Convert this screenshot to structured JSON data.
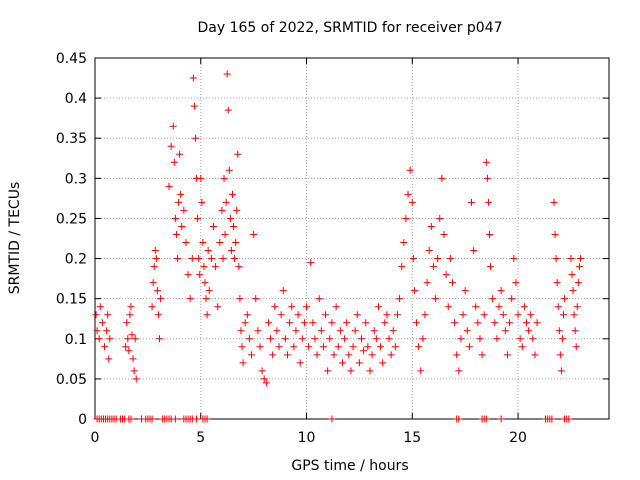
{
  "chart_data": {
    "type": "scatter",
    "title": "Day 165 of 2022, SRMTID for receiver p047",
    "xlabel": "GPS time / hours",
    "ylabel": "SRMTID / TECUs",
    "xlim": [
      0,
      24.3
    ],
    "ylim": [
      0,
      0.45
    ],
    "xticks": [
      0,
      5,
      10,
      15,
      20
    ],
    "yticks": [
      0,
      0.05,
      0.1,
      0.15,
      0.2,
      0.25,
      0.3,
      0.35,
      0.4,
      0.45
    ],
    "ytick_labels": [
      "0",
      "0.05",
      "0.1",
      "0.15",
      "0.2",
      "0.25",
      "0.3",
      "0.35",
      "0.4",
      "0.45"
    ],
    "grid": true,
    "marker": "+",
    "color": "#ff0000",
    "series": [
      {
        "name": "SRMTID",
        "points": [
          [
            0.05,
            0.13
          ],
          [
            0.1,
            0.11
          ],
          [
            0.2,
            0.1
          ],
          [
            0.25,
            0.14
          ],
          [
            0.35,
            0.12
          ],
          [
            0.45,
            0.09
          ],
          [
            0.55,
            0.11
          ],
          [
            0.6,
            0.13
          ],
          [
            0.65,
            0.075
          ],
          [
            0.7,
            0.1
          ],
          [
            1.45,
            0.09
          ],
          [
            1.5,
            0.12
          ],
          [
            1.55,
            0.1
          ],
          [
            1.6,
            0.085
          ],
          [
            1.65,
            0.13
          ],
          [
            1.7,
            0.14
          ],
          [
            1.75,
            0.105
          ],
          [
            1.8,
            0.075
          ],
          [
            1.85,
            0.06
          ],
          [
            1.9,
            0.1
          ],
          [
            1.95,
            0.05
          ],
          [
            2.7,
            0.14
          ],
          [
            2.75,
            0.17
          ],
          [
            2.8,
            0.19
          ],
          [
            2.85,
            0.21
          ],
          [
            2.9,
            0.2
          ],
          [
            2.95,
            0.16
          ],
          [
            3.0,
            0.13
          ],
          [
            3.05,
            0.1
          ],
          [
            3.1,
            0.15
          ],
          [
            3.5,
            0.29
          ],
          [
            3.6,
            0.34
          ],
          [
            3.7,
            0.365
          ],
          [
            3.75,
            0.32
          ],
          [
            3.8,
            0.25
          ],
          [
            3.85,
            0.23
          ],
          [
            3.9,
            0.2
          ],
          [
            3.95,
            0.27
          ],
          [
            4.0,
            0.33
          ],
          [
            4.05,
            0.28
          ],
          [
            4.1,
            0.24
          ],
          [
            4.2,
            0.26
          ],
          [
            4.3,
            0.22
          ],
          [
            4.4,
            0.18
          ],
          [
            4.5,
            0.15
          ],
          [
            4.6,
            0.2
          ],
          [
            4.65,
            0.425
          ],
          [
            4.7,
            0.39
          ],
          [
            4.75,
            0.35
          ],
          [
            4.8,
            0.3
          ],
          [
            4.85,
            0.25
          ],
          [
            4.9,
            0.2
          ],
          [
            4.95,
            0.18
          ],
          [
            5.0,
            0.3
          ],
          [
            5.05,
            0.27
          ],
          [
            5.1,
            0.22
          ],
          [
            5.15,
            0.19
          ],
          [
            5.2,
            0.17
          ],
          [
            5.25,
            0.15
          ],
          [
            5.3,
            0.13
          ],
          [
            5.35,
            0.21
          ],
          [
            5.4,
            0.16
          ],
          [
            5.5,
            0.2
          ],
          [
            5.6,
            0.24
          ],
          [
            5.7,
            0.19
          ],
          [
            5.8,
            0.14
          ],
          [
            5.9,
            0.22
          ],
          [
            6.0,
            0.26
          ],
          [
            6.05,
            0.2
          ],
          [
            6.1,
            0.3
          ],
          [
            6.15,
            0.23
          ],
          [
            6.2,
            0.27
          ],
          [
            6.25,
            0.43
          ],
          [
            6.3,
            0.385
          ],
          [
            6.35,
            0.31
          ],
          [
            6.4,
            0.25
          ],
          [
            6.45,
            0.21
          ],
          [
            6.5,
            0.28
          ],
          [
            6.55,
            0.24
          ],
          [
            6.6,
            0.2
          ],
          [
            6.65,
            0.22
          ],
          [
            6.7,
            0.26
          ],
          [
            6.75,
            0.33
          ],
          [
            6.8,
            0.19
          ],
          [
            6.85,
            0.15
          ],
          [
            6.9,
            0.11
          ],
          [
            6.95,
            0.09
          ],
          [
            7.0,
            0.07
          ],
          [
            7.1,
            0.12
          ],
          [
            7.2,
            0.13
          ],
          [
            7.3,
            0.1
          ],
          [
            7.4,
            0.08
          ],
          [
            7.5,
            0.23
          ],
          [
            7.6,
            0.15
          ],
          [
            7.7,
            0.11
          ],
          [
            7.8,
            0.09
          ],
          [
            7.9,
            0.06
          ],
          [
            8.0,
            0.05
          ],
          [
            8.1,
            0.045
          ],
          [
            8.2,
            0.12
          ],
          [
            8.3,
            0.1
          ],
          [
            8.4,
            0.08
          ],
          [
            8.5,
            0.14
          ],
          [
            8.6,
            0.11
          ],
          [
            8.7,
            0.09
          ],
          [
            8.8,
            0.13
          ],
          [
            8.9,
            0.16
          ],
          [
            9.0,
            0.1
          ],
          [
            9.1,
            0.08
          ],
          [
            9.2,
            0.12
          ],
          [
            9.3,
            0.14
          ],
          [
            9.4,
            0.09
          ],
          [
            9.5,
            0.11
          ],
          [
            9.6,
            0.13
          ],
          [
            9.7,
            0.07
          ],
          [
            9.8,
            0.1
          ],
          [
            9.9,
            0.12
          ],
          [
            10.0,
            0.14
          ],
          [
            10.1,
            0.09
          ],
          [
            10.2,
            0.195
          ],
          [
            10.3,
            0.12
          ],
          [
            10.4,
            0.1
          ],
          [
            10.5,
            0.08
          ],
          [
            10.6,
            0.15
          ],
          [
            10.7,
            0.11
          ],
          [
            10.8,
            0.09
          ],
          [
            10.9,
            0.13
          ],
          [
            11.0,
            0.06
          ],
          [
            11.1,
            0.1
          ],
          [
            11.2,
            0.12
          ],
          [
            11.3,
            0.08
          ],
          [
            11.4,
            0.14
          ],
          [
            11.5,
            0.09
          ],
          [
            11.6,
            0.11
          ],
          [
            11.7,
            0.07
          ],
          [
            11.8,
            0.1
          ],
          [
            11.9,
            0.12
          ],
          [
            12.0,
            0.08
          ],
          [
            12.1,
            0.06
          ],
          [
            12.2,
            0.09
          ],
          [
            12.3,
            0.11
          ],
          [
            12.4,
            0.13
          ],
          [
            12.5,
            0.07
          ],
          [
            12.6,
            0.1
          ],
          [
            12.7,
            0.085
          ],
          [
            12.8,
            0.12
          ],
          [
            12.9,
            0.09
          ],
          [
            13.0,
            0.06
          ],
          [
            13.1,
            0.08
          ],
          [
            13.2,
            0.11
          ],
          [
            13.3,
            0.1
          ],
          [
            13.4,
            0.14
          ],
          [
            13.5,
            0.09
          ],
          [
            13.6,
            0.07
          ],
          [
            13.7,
            0.12
          ],
          [
            13.8,
            0.13
          ],
          [
            13.9,
            0.1
          ],
          [
            14.0,
            0.08
          ],
          [
            14.1,
            0.11
          ],
          [
            14.2,
            0.09
          ],
          [
            14.3,
            0.13
          ],
          [
            14.4,
            0.15
          ],
          [
            14.5,
            0.19
          ],
          [
            14.6,
            0.22
          ],
          [
            14.7,
            0.25
          ],
          [
            14.8,
            0.28
          ],
          [
            14.9,
            0.31
          ],
          [
            15.0,
            0.27
          ],
          [
            15.05,
            0.2
          ],
          [
            15.1,
            0.16
          ],
          [
            15.2,
            0.12
          ],
          [
            15.3,
            0.09
          ],
          [
            15.4,
            0.06
          ],
          [
            15.5,
            0.1
          ],
          [
            15.6,
            0.13
          ],
          [
            15.7,
            0.17
          ],
          [
            15.8,
            0.21
          ],
          [
            15.9,
            0.24
          ],
          [
            16.0,
            0.19
          ],
          [
            16.1,
            0.15
          ],
          [
            16.2,
            0.2
          ],
          [
            16.3,
            0.25
          ],
          [
            16.4,
            0.3
          ],
          [
            16.5,
            0.23
          ],
          [
            16.6,
            0.18
          ],
          [
            16.7,
            0.14
          ],
          [
            16.8,
            0.2
          ],
          [
            16.9,
            0.17
          ],
          [
            17.0,
            0.12
          ],
          [
            17.1,
            0.08
          ],
          [
            17.2,
            0.06
          ],
          [
            17.3,
            0.1
          ],
          [
            17.4,
            0.13
          ],
          [
            17.5,
            0.16
          ],
          [
            17.6,
            0.11
          ],
          [
            17.7,
            0.09
          ],
          [
            17.8,
            0.27
          ],
          [
            17.9,
            0.21
          ],
          [
            18.0,
            0.14
          ],
          [
            18.1,
            0.12
          ],
          [
            18.2,
            0.1
          ],
          [
            18.3,
            0.08
          ],
          [
            18.4,
            0.13
          ],
          [
            18.5,
            0.32
          ],
          [
            18.55,
            0.3
          ],
          [
            18.6,
            0.27
          ],
          [
            18.65,
            0.23
          ],
          [
            18.7,
            0.19
          ],
          [
            18.8,
            0.15
          ],
          [
            18.9,
            0.12
          ],
          [
            19.0,
            0.1
          ],
          [
            19.1,
            0.14
          ],
          [
            19.2,
            0.16
          ],
          [
            19.3,
            0.13
          ],
          [
            19.4,
            0.11
          ],
          [
            19.5,
            0.08
          ],
          [
            19.6,
            0.12
          ],
          [
            19.7,
            0.15
          ],
          [
            19.8,
            0.2
          ],
          [
            19.9,
            0.17
          ],
          [
            20.0,
            0.13
          ],
          [
            20.1,
            0.1
          ],
          [
            20.2,
            0.09
          ],
          [
            20.3,
            0.14
          ],
          [
            20.4,
            0.12
          ],
          [
            20.5,
            0.11
          ],
          [
            20.6,
            0.13
          ],
          [
            20.7,
            0.1
          ],
          [
            20.8,
            0.08
          ],
          [
            20.9,
            0.12
          ],
          [
            21.7,
            0.27
          ],
          [
            21.75,
            0.23
          ],
          [
            21.8,
            0.2
          ],
          [
            21.85,
            0.17
          ],
          [
            21.9,
            0.14
          ],
          [
            21.95,
            0.11
          ],
          [
            22.0,
            0.08
          ],
          [
            22.05,
            0.06
          ],
          [
            22.1,
            0.1
          ],
          [
            22.15,
            0.13
          ],
          [
            22.2,
            0.15
          ],
          [
            22.5,
            0.2
          ],
          [
            22.55,
            0.18
          ],
          [
            22.6,
            0.16
          ],
          [
            22.65,
            0.13
          ],
          [
            22.7,
            0.11
          ],
          [
            22.75,
            0.09
          ],
          [
            22.8,
            0.14
          ],
          [
            22.85,
            0.17
          ],
          [
            22.9,
            0.19
          ],
          [
            22.95,
            0.2
          ]
        ]
      }
    ],
    "zero_markers": [
      0.1,
      0.2,
      0.3,
      0.4,
      0.5,
      0.6,
      0.7,
      0.8,
      0.9,
      1.0,
      1.2,
      1.3,
      1.4,
      1.6,
      1.7,
      2.2,
      2.4,
      2.5,
      2.6,
      2.7,
      3.2,
      3.3,
      3.4,
      3.5,
      3.6,
      3.8,
      4.2,
      4.3,
      4.4,
      4.5,
      4.6,
      4.8,
      5.1,
      5.2,
      5.3,
      11.2,
      17.1,
      17.2,
      18.3,
      18.4,
      18.5,
      19.2,
      21.3,
      21.4,
      21.5,
      21.6,
      22.2,
      22.3,
      22.4
    ]
  }
}
